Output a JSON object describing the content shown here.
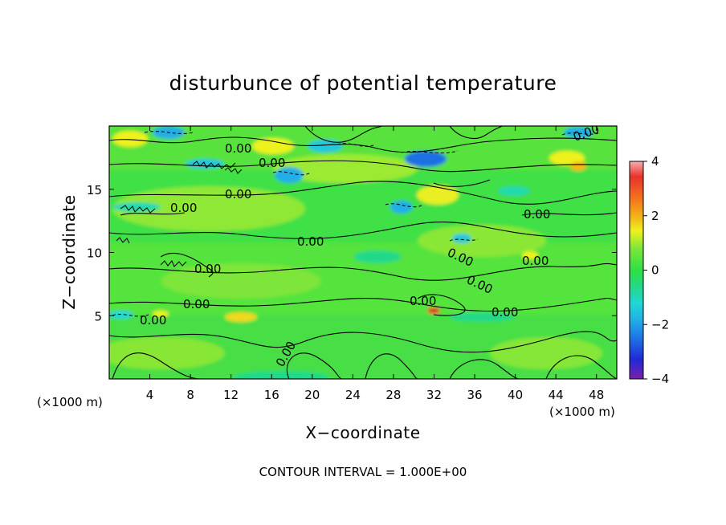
{
  "chart_data": {
    "type": "heatmap",
    "title": "disturbunce of potential temperature",
    "xlabel": "X−coordinate",
    "ylabel": "Z−coordinate",
    "x_unit": "(×1000 m)",
    "z_unit": "(×1000 m)",
    "x_ticks": [
      4,
      8,
      12,
      16,
      20,
      24,
      28,
      32,
      36,
      40,
      44,
      48
    ],
    "z_ticks": [
      5,
      10,
      15
    ],
    "xlim": [
      0,
      50
    ],
    "zlim": [
      0,
      20
    ],
    "colorbar": {
      "range": [
        -4,
        4
      ],
      "ticks": [
        4,
        2,
        0,
        -2,
        -4
      ],
      "colors": [
        "#f6b0b0",
        "#e8322c",
        "#f47a1e",
        "#f2b818",
        "#eef21c",
        "#b9e82e",
        "#5fe638",
        "#2fdf44",
        "#24d98a",
        "#20d8d4",
        "#22aee6",
        "#1e6fe3",
        "#1f2ad6",
        "#5317c4",
        "#7c1fa8"
      ]
    },
    "contour_interval": "CONTOUR INTERVAL = 1.000E+00",
    "contour_labels": [
      "0.00",
      "0.00",
      "0.00",
      "0.00",
      "0.00",
      "0.00",
      "0.00",
      "0.00",
      "0.00",
      "0.00",
      "0.00",
      "0.00",
      "0.00",
      "0.00",
      "0.00",
      "0.00",
      "0.00",
      "0.00"
    ]
  }
}
